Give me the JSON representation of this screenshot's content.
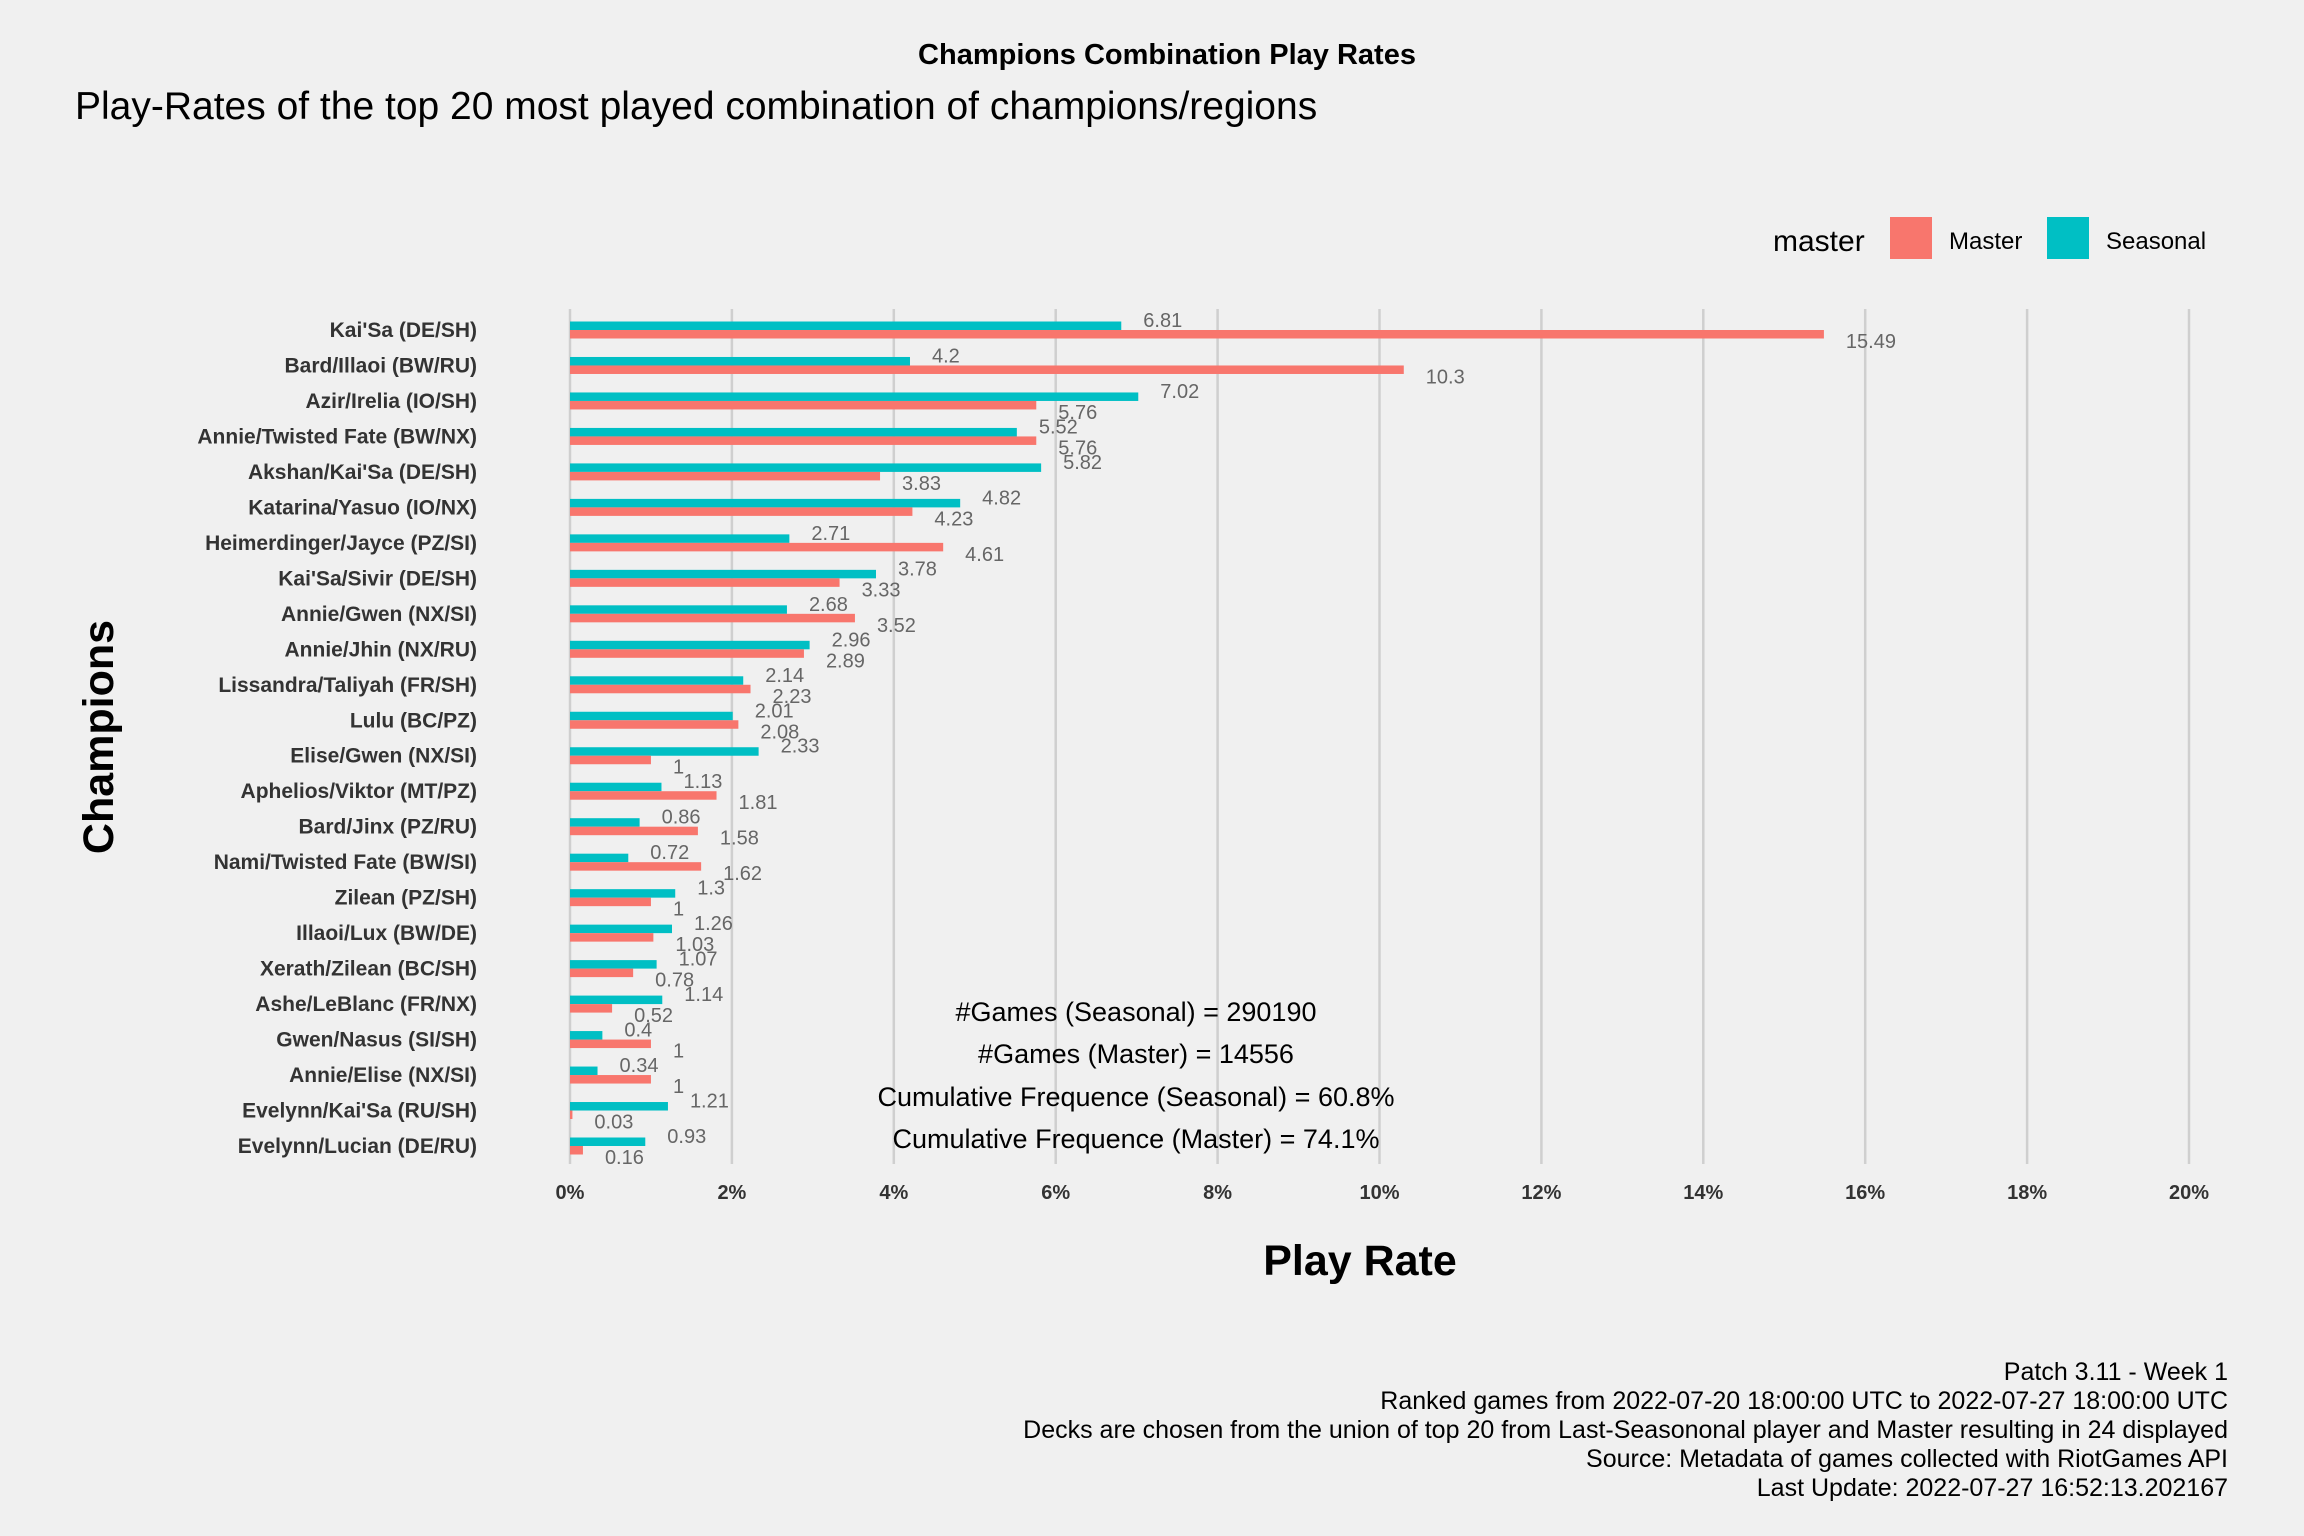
{
  "chart_data": {
    "type": "bar",
    "orientation": "horizontal",
    "title": "Champions Combination Play Rates",
    "subtitle": "Play-Rates of the top 20 most played combination of champions/regions",
    "xlabel": "Play Rate",
    "ylabel": "Champions",
    "xlim": [
      0,
      20
    ],
    "x_ticks": [
      "0%",
      "2%",
      "4%",
      "6%",
      "8%",
      "10%",
      "12%",
      "14%",
      "16%",
      "18%",
      "20%"
    ],
    "grid": true,
    "legend": {
      "title": "master",
      "position": "top-right",
      "entries": [
        {
          "label": "Master",
          "color": "#f8766d"
        },
        {
          "label": "Seasonal",
          "color": "#00bfc4"
        }
      ]
    },
    "categories": [
      "Kai'Sa (DE/SH)",
      "Bard/Illaoi (BW/RU)",
      "Azir/Irelia (IO/SH)",
      "Annie/Twisted Fate (BW/NX)",
      "Akshan/Kai'Sa (DE/SH)",
      "Katarina/Yasuo (IO/NX)",
      "Heimerdinger/Jayce (PZ/SI)",
      "Kai'Sa/Sivir (DE/SH)",
      "Annie/Gwen (NX/SI)",
      "Annie/Jhin (NX/RU)",
      "Lissandra/Taliyah (FR/SH)",
      "Lulu (BC/PZ)",
      "Elise/Gwen (NX/SI)",
      "Aphelios/Viktor (MT/PZ)",
      "Bard/Jinx (PZ/RU)",
      "Nami/Twisted Fate (BW/SI)",
      "Zilean (PZ/SH)",
      "Illaoi/Lux (BW/DE)",
      "Xerath/Zilean (BC/SH)",
      "Ashe/LeBlanc (FR/NX)",
      "Gwen/Nasus (SI/SH)",
      "Annie/Elise (NX/SI)",
      "Evelynn/Kai'Sa (RU/SH)",
      "Evelynn/Lucian (DE/RU)"
    ],
    "series": [
      {
        "name": "Seasonal",
        "color": "#00bfc4",
        "values": [
          6.81,
          4.2,
          7.02,
          5.52,
          5.82,
          4.82,
          2.71,
          3.78,
          2.68,
          2.96,
          2.14,
          2.01,
          2.33,
          1.13,
          0.86,
          0.72,
          1.3,
          1.26,
          1.07,
          1.14,
          0.4,
          0.34,
          1.21,
          0.93
        ],
        "labels": [
          "6.81",
          "4.2",
          "7.02",
          "5.52",
          "5.82",
          "4.82",
          "2.71",
          "3.78",
          "2.68",
          "2.96",
          "2.14",
          "2.01",
          "2.33",
          "1.13",
          "0.86",
          "0.72",
          "1.3",
          "1.26",
          "1.07",
          "1.14",
          "0.4",
          "0.34",
          "1.21",
          "0.93"
        ]
      },
      {
        "name": "Master",
        "color": "#f8766d",
        "values": [
          15.49,
          10.3,
          5.76,
          5.76,
          3.83,
          4.23,
          4.61,
          3.33,
          3.52,
          2.89,
          2.23,
          2.08,
          1.0,
          1.81,
          1.58,
          1.62,
          1.0,
          1.03,
          0.78,
          0.52,
          1.0,
          1.0,
          0.03,
          0.16
        ],
        "labels": [
          "15.49",
          "10.3",
          "5.76",
          "5.76",
          "3.83",
          "4.23",
          "4.61",
          "3.33",
          "3.52",
          "2.89",
          "2.23",
          "2.08",
          "1",
          "1.81",
          "1.58",
          "1.62",
          "1",
          "1.03",
          "0.78",
          "0.52",
          "1",
          "1",
          "0.03",
          "0.16"
        ]
      }
    ],
    "annotations": [
      "#Games (Seasonal) = 290190",
      "#Games (Master) = 14556",
      "Cumulative Frequence (Seasonal) = 60.8%",
      "Cumulative Frequence (Master) = 74.1%"
    ],
    "caption": [
      "Patch 3.11 - Week 1",
      "Ranked games from 2022-07-20 18:00:00 UTC to 2022-07-27 18:00:00 UTC",
      "Decks are chosen from the union of top 20 from Last-Seasononal player and Master resulting in 24 displayed",
      "Source: Metadata of games collected with RiotGames API",
      "Last Update: 2022-07-27 16:52:13.202167"
    ]
  }
}
